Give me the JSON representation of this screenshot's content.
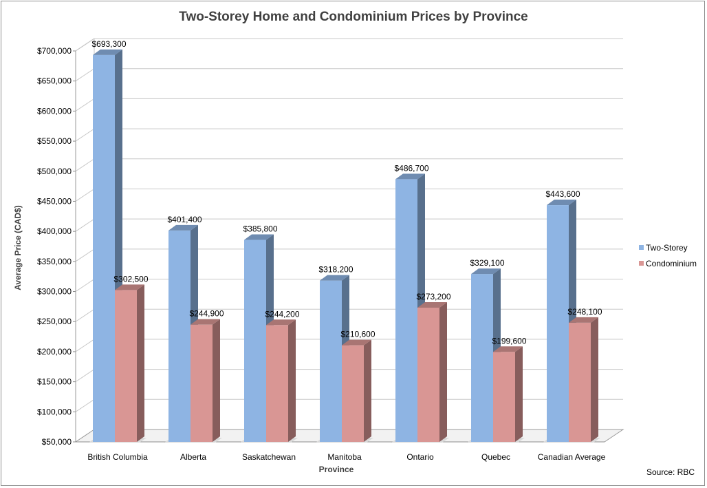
{
  "chart_data": {
    "type": "bar",
    "style": "3d-clustered-column",
    "title": "Two-Storey Home and Condominium Prices by Province",
    "xlabel": "Province",
    "ylabel": "Average Price (CAD$)",
    "categories": [
      "British Columbia",
      "Alberta",
      "Saskatchewan",
      "Manitoba",
      "Ontario",
      "Quebec",
      "Canadian Average"
    ],
    "series": [
      {
        "name": "Two-Storey",
        "color": "#8eb4e3",
        "values": [
          693300,
          401400,
          385800,
          318200,
          486700,
          329100,
          443600
        ],
        "labels": [
          "$693,300",
          "$401,400",
          "$385,800",
          "$318,200",
          "$486,700",
          "$329,100",
          "$443,600"
        ]
      },
      {
        "name": "Condominium",
        "color": "#d99694",
        "values": [
          302500,
          244900,
          244200,
          210600,
          273200,
          199600,
          248100
        ],
        "labels": [
          "$302,500",
          "$244,900",
          "$244,200",
          "$210,600",
          "$273,200",
          "$199,600",
          "$248,100"
        ]
      }
    ],
    "ylim": [
      50000,
      700000
    ],
    "ytick_values": [
      50000,
      100000,
      150000,
      200000,
      250000,
      300000,
      350000,
      400000,
      450000,
      500000,
      550000,
      600000,
      650000,
      700000
    ],
    "ytick_labels": [
      "$50,000",
      "$100,000",
      "$150,000",
      "$200,000",
      "$250,000",
      "$300,000",
      "$350,000",
      "$400,000",
      "$450,000",
      "$500,000",
      "$550,000",
      "$600,000",
      "$650,000",
      "$700,000"
    ],
    "grid": true,
    "legend_position": "right"
  },
  "source_note": "Source: RBC"
}
